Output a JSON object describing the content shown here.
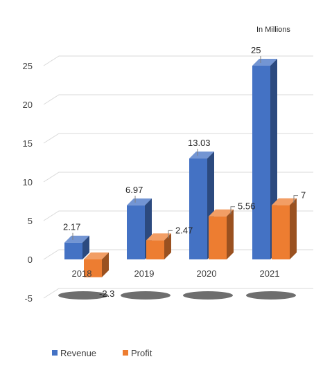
{
  "chart_data": {
    "type": "bar",
    "title": "",
    "units_note": "In Millions",
    "categories": [
      "2018",
      "2019",
      "2020",
      "2021"
    ],
    "series": [
      {
        "name": "Revenue",
        "values": [
          2.17,
          6.97,
          13.03,
          25
        ],
        "color": "#4472C4"
      },
      {
        "name": "Profit",
        "values": [
          -2.3,
          2.47,
          5.56,
          7
        ],
        "color": "#ED7D31"
      }
    ],
    "ylim": [
      -5,
      25
    ],
    "yticks": [
      -5,
      0,
      5,
      10,
      15,
      20,
      25
    ],
    "ytick_labels": [
      "-5",
      "0",
      "5",
      "10",
      "15",
      "20",
      "25"
    ],
    "grid": true,
    "legend": "bottom-left",
    "data_labels": {
      "series0": [
        "2.17",
        "6.97",
        "13.03",
        "25"
      ],
      "series1": [
        "-2.3",
        "2.47",
        "5.56",
        "7"
      ]
    }
  }
}
